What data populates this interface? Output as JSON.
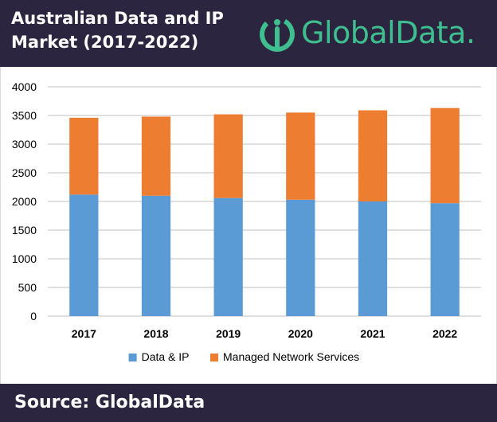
{
  "header": {
    "title": "Australian Data and IP Market (2017-2022)",
    "logo_text": "GlobalData."
  },
  "footer": {
    "source": "Source: GlobalData"
  },
  "colors": {
    "header_bg": "#2b2540",
    "logo": "#3fbf8f",
    "data_ip": "#5b9bd5",
    "managed": "#ed7d31"
  },
  "chart_data": {
    "type": "bar",
    "stacked": true,
    "categories": [
      "2017",
      "2018",
      "2019",
      "2020",
      "2021",
      "2022"
    ],
    "series": [
      {
        "name": "Data & IP",
        "color": "#5b9bd5",
        "values": [
          2120,
          2100,
          2060,
          2030,
          2000,
          1970
        ]
      },
      {
        "name": "Managed Network Services",
        "color": "#ed7d31",
        "values": [
          1340,
          1380,
          1460,
          1520,
          1590,
          1660
        ]
      }
    ],
    "ylim": [
      0,
      4000
    ],
    "yticks": [
      0,
      500,
      1000,
      1500,
      2000,
      2500,
      3000,
      3500,
      4000
    ],
    "grid": true,
    "legend": "bottom"
  }
}
